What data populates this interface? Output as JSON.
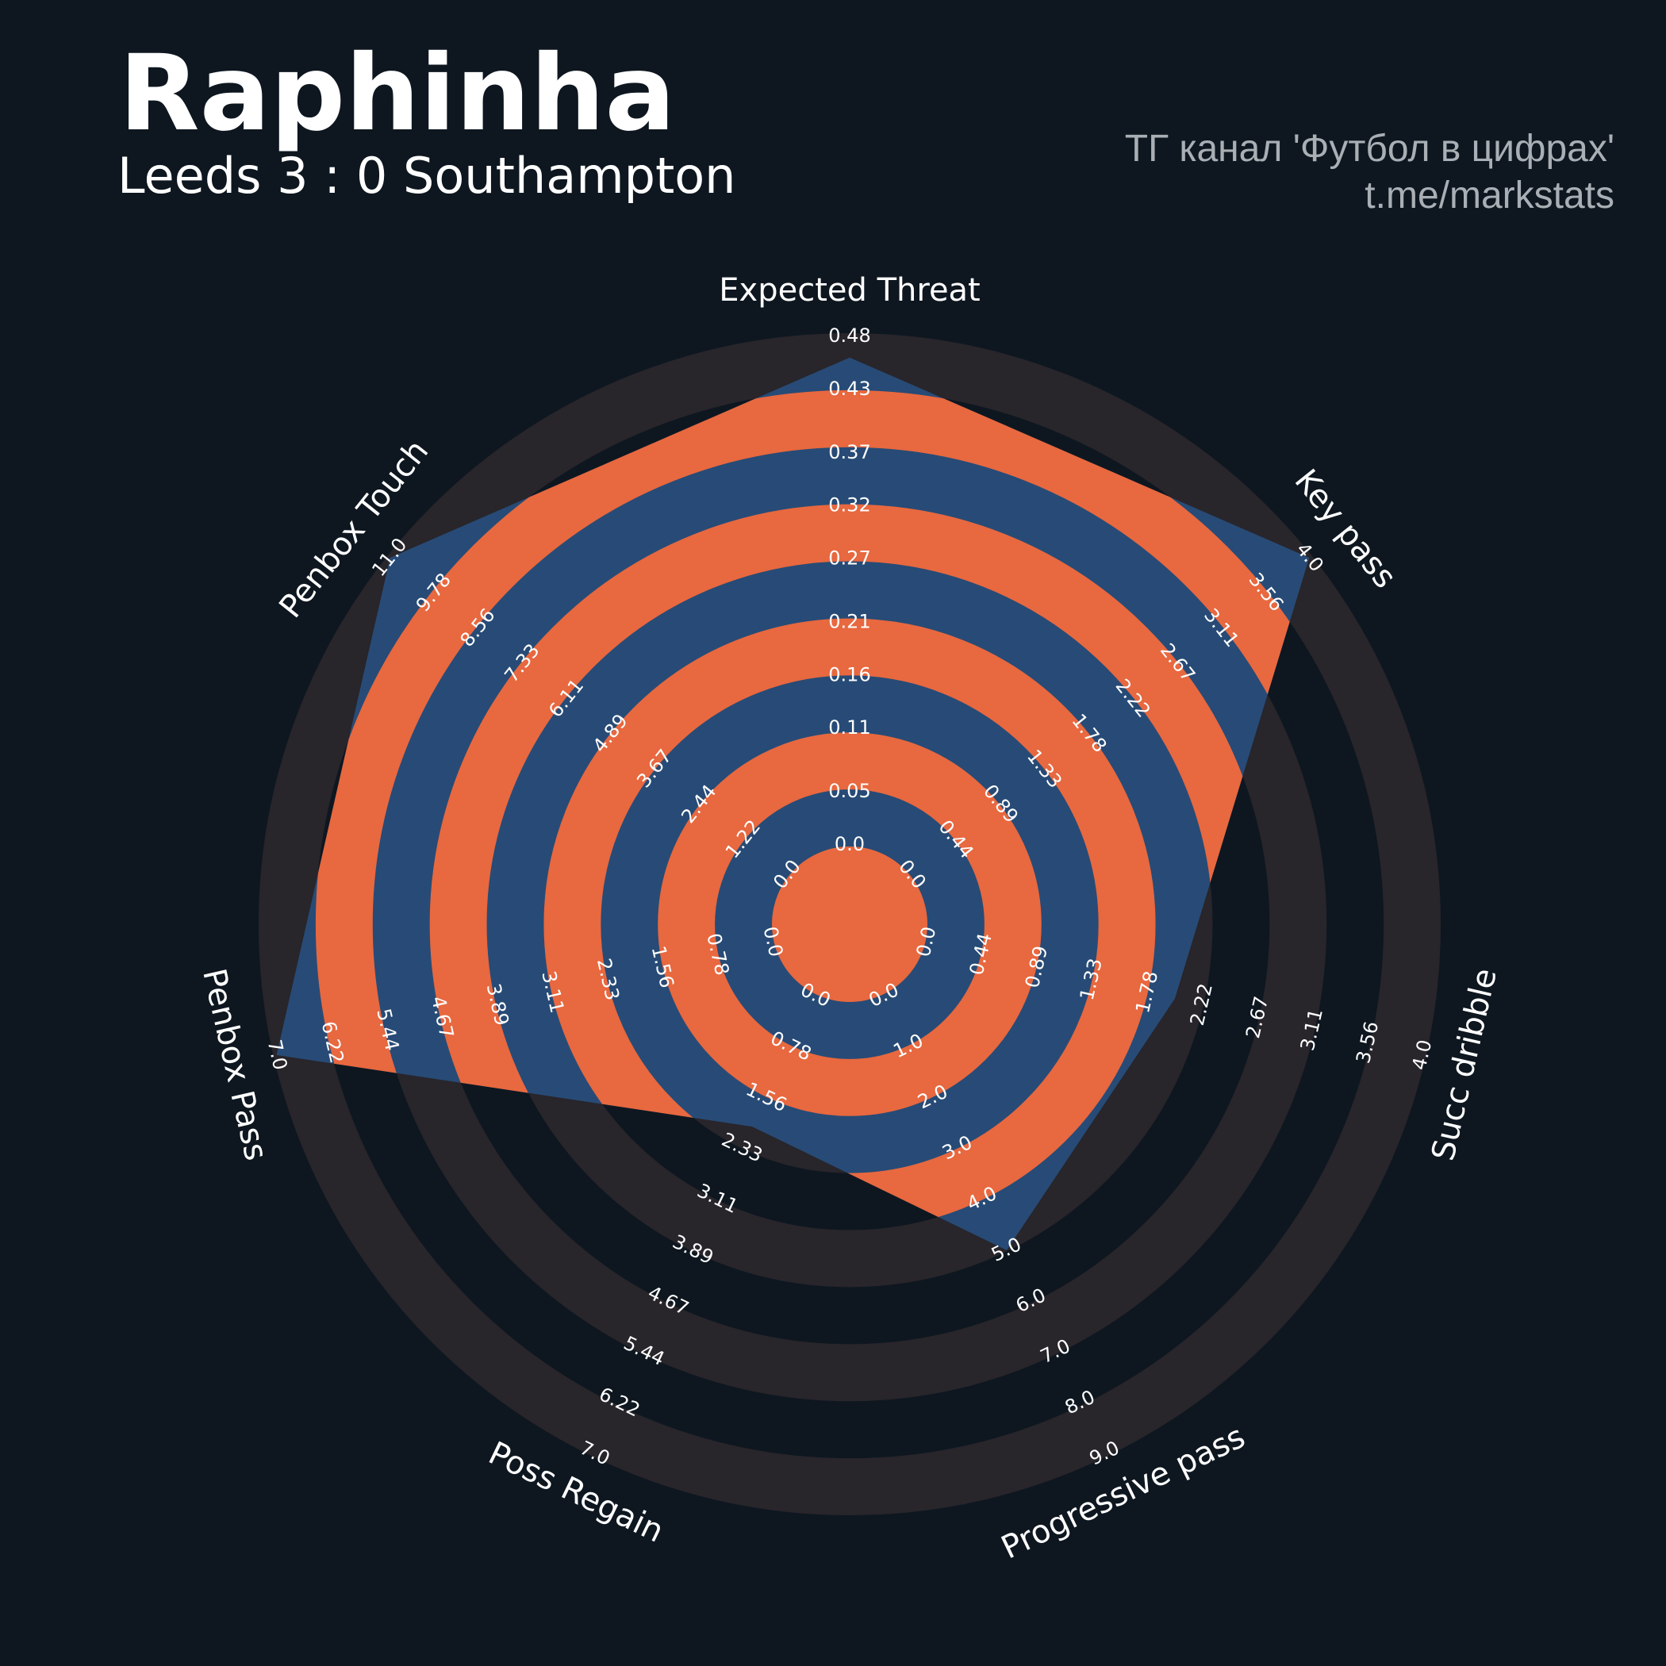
{
  "chart_data": {
    "type": "radar",
    "title": "Raphinha",
    "subtitle": "Leeds 3 : 0 Southampton",
    "credits": [
      "ТГ канал 'Футбол в цифрах'",
      "t.me/markstats"
    ],
    "axes": [
      {
        "name": "Expected Threat",
        "lim": [
          0,
          0.48
        ],
        "ticks": [
          {
            "value": 0,
            "label": "0.0"
          },
          0.05,
          0.11,
          0.16,
          0.21,
          0.27,
          0.32,
          0.37,
          0.43,
          0.48
        ]
      },
      {
        "name": "Key pass",
        "lim": [
          0,
          4
        ],
        "ticks": [
          {
            "value": 0,
            "label": "0.0"
          },
          0.44,
          0.89,
          1.33,
          1.78,
          2.22,
          2.67,
          3.11,
          3.56,
          {
            "value": 4,
            "label": "4.0"
          }
        ]
      },
      {
        "name": "Succ dribble",
        "lim": [
          0,
          4
        ],
        "ticks": [
          {
            "value": 0,
            "label": "0.0"
          },
          0.44,
          0.89,
          1.33,
          1.78,
          2.22,
          2.67,
          3.11,
          3.56,
          {
            "value": 4,
            "label": "4.0"
          }
        ]
      },
      {
        "name": "Progressive pass",
        "lim": [
          0,
          9
        ],
        "ticks": [
          {
            "value": 0,
            "label": "0.0"
          },
          {
            "value": 1,
            "label": "1.0"
          },
          {
            "value": 2,
            "label": "2.0"
          },
          {
            "value": 3,
            "label": "3.0"
          },
          {
            "value": 4,
            "label": "4.0"
          },
          {
            "value": 5,
            "label": "5.0"
          },
          {
            "value": 6,
            "label": "6.0"
          },
          {
            "value": 7,
            "label": "7.0"
          },
          {
            "value": 8,
            "label": "8.0"
          },
          {
            "value": 9,
            "label": "9.0"
          }
        ]
      },
      {
        "name": "Poss Regain",
        "lim": [
          0,
          7
        ],
        "ticks": [
          {
            "value": 0,
            "label": "0.0"
          },
          0.78,
          1.56,
          2.33,
          3.11,
          3.89,
          4.67,
          5.44,
          6.22,
          {
            "value": 7,
            "label": "7.0"
          }
        ]
      },
      {
        "name": "Penbox Pass",
        "lim": [
          0,
          7
        ],
        "ticks": [
          {
            "value": 0,
            "label": "0.0"
          },
          0.78,
          1.56,
          2.33,
          3.11,
          3.89,
          4.67,
          5.44,
          6.22,
          {
            "value": 7,
            "label": "7.0"
          }
        ]
      },
      {
        "name": "Penbox Touch",
        "lim": [
          0,
          11
        ],
        "ticks": [
          {
            "value": 0,
            "label": "0.0"
          },
          1.22,
          2.44,
          3.67,
          4.89,
          6.11,
          7.33,
          8.56,
          9.78,
          {
            "value": 11,
            "label": "11.0"
          }
        ]
      }
    ],
    "series": [
      {
        "color": "#274b76",
        "values": [
          0.46,
          4.0,
          2.0,
          5.0,
          2.0,
          7.0,
          11.0
        ]
      }
    ],
    "ring_color": "#e8683f"
  }
}
